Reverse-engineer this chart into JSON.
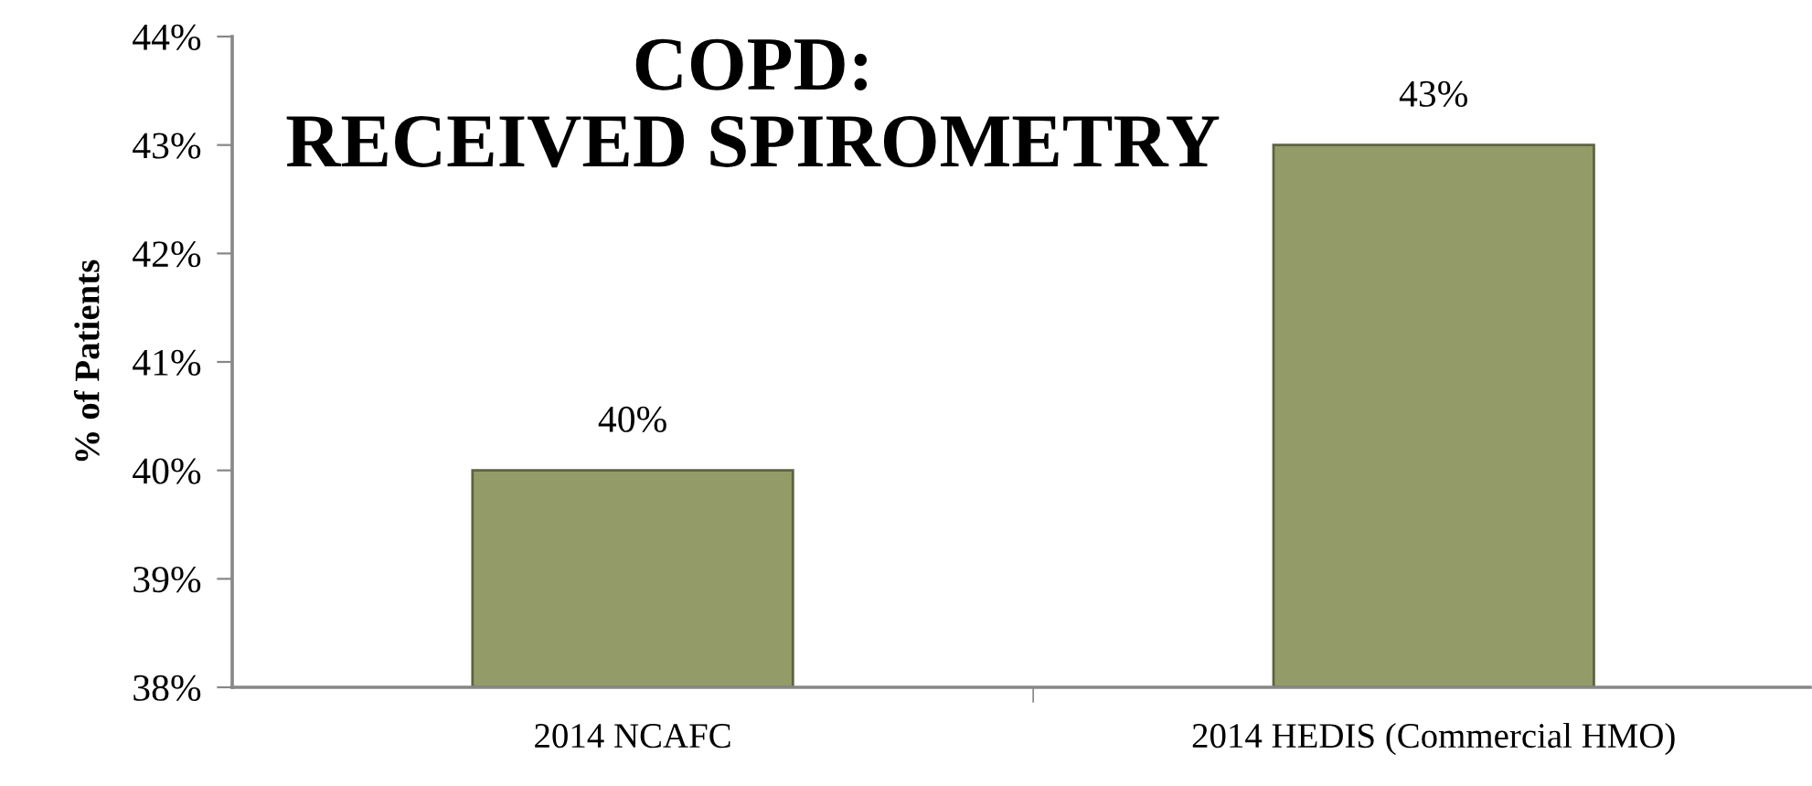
{
  "chart_data": {
    "type": "bar",
    "title": "COPD:\nRECEIVED SPIROMETRY",
    "ylabel": "% of Patients",
    "categories": [
      "2014 NCAFC",
      "2014 HEDIS (Commercial HMO)"
    ],
    "values": [
      40,
      43
    ],
    "color": "#939c68",
    "value_labels": [
      "40%",
      "43%"
    ],
    "ylim": [
      38,
      44
    ],
    "yticks": [
      {
        "value": 38,
        "label": "38%"
      },
      {
        "value": 39,
        "label": "39%"
      },
      {
        "value": 40,
        "label": "40%"
      },
      {
        "value": 41,
        "label": "41%"
      },
      {
        "value": 42,
        "label": "42%"
      },
      {
        "value": 43,
        "label": "43%"
      },
      {
        "value": 44,
        "label": "44%"
      }
    ],
    "grid": false,
    "legend": false
  }
}
